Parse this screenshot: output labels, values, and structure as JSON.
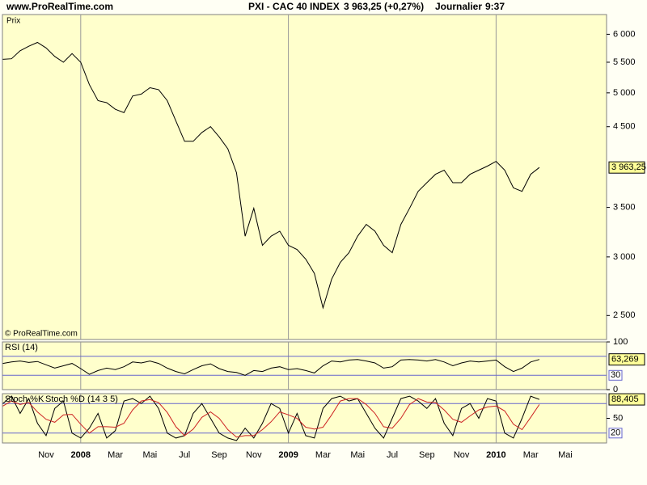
{
  "header": {
    "site": "www.ProRealTime.com",
    "title": "PXI - CAC 40 INDEX",
    "quote": "3 963,25 (+0,27%)",
    "period": "Journalier",
    "time": "9:37"
  },
  "chart_data": [
    {
      "type": "line",
      "label": "Prix",
      "credit": "© ProRealTime.com",
      "log": true,
      "categories": [
        null,
        null,
        null,
        null,
        null,
        "Nov",
        null,
        null,
        null,
        "2008",
        null,
        null,
        null,
        "Mar",
        null,
        null,
        null,
        "Mai",
        null,
        null,
        null,
        "Jul",
        null,
        null,
        null,
        "Sep",
        null,
        null,
        null,
        "Nov",
        null,
        null,
        null,
        "2009",
        null,
        null,
        null,
        "Mar",
        null,
        null,
        null,
        "Mai",
        null,
        null,
        null,
        "Jul",
        null,
        null,
        null,
        "Sep",
        null,
        null,
        null,
        "Nov",
        null,
        null,
        null,
        "2010",
        null,
        null,
        null,
        "Mar",
        null,
        null,
        null,
        "Mai",
        null,
        null,
        null,
        null
      ],
      "series": [
        {
          "name": "Prix",
          "color": "#000000",
          "values": [
            5550,
            5560,
            5700,
            5780,
            5850,
            5750,
            5600,
            5500,
            5650,
            5500,
            5130,
            4880,
            4850,
            4750,
            4700,
            4950,
            4980,
            5080,
            5050,
            4880,
            4580,
            4300,
            4300,
            4420,
            4500,
            4360,
            4200,
            3900,
            3200,
            3490,
            3110,
            3200,
            3250,
            3110,
            3070,
            2980,
            2850,
            2560,
            2800,
            2950,
            3040,
            3200,
            3320,
            3250,
            3110,
            3040,
            3320,
            3490,
            3680,
            3780,
            3880,
            3930,
            3780,
            3780,
            3880,
            3930,
            3980,
            4040,
            3930,
            3720,
            3680,
            3880,
            3963.25,
            null,
            null,
            null,
            null,
            null,
            null,
            null
          ]
        }
      ],
      "current": {
        "value": 3963.25,
        "label": "3 963,25"
      },
      "ylim": [
        2320,
        6380
      ],
      "yticks": [
        {
          "value": 2500,
          "label": "2 500"
        },
        {
          "value": 3000,
          "label": "3 000"
        },
        {
          "value": 3500,
          "label": "3 500"
        },
        {
          "value": 4500,
          "label": "4 500"
        },
        {
          "value": 5000,
          "label": "5 000"
        },
        {
          "value": 5500,
          "label": "5 500"
        },
        {
          "value": 6000,
          "label": "6 000"
        }
      ]
    },
    {
      "type": "line",
      "label": "RSI (14)",
      "series": [
        {
          "name": "RSI (14)",
          "color": "#000000",
          "values": [
            55,
            58,
            60,
            57,
            59,
            52,
            45,
            50,
            55,
            44,
            32,
            40,
            45,
            42,
            48,
            58,
            56,
            60,
            55,
            45,
            38,
            33,
            42,
            50,
            54,
            44,
            38,
            36,
            30,
            40,
            38,
            45,
            48,
            42,
            44,
            40,
            35,
            50,
            60,
            58,
            62,
            63,
            60,
            56,
            45,
            48,
            62,
            63,
            62,
            60,
            63,
            58,
            50,
            56,
            60,
            58,
            60,
            62,
            48,
            38,
            45,
            58,
            63.269
          ]
        }
      ],
      "current": {
        "value": 63.269,
        "label": "63,269"
      },
      "ylim": [
        0,
        100
      ],
      "yticks": [
        0,
        100
      ],
      "levels": [
        30,
        70
      ]
    },
    {
      "type": "line",
      "label": "Stoch %K",
      "series": [
        {
          "name": "Stoch %K",
          "color": "#000000",
          "values": [
            80,
            95,
            60,
            90,
            40,
            15,
            70,
            85,
            20,
            10,
            30,
            60,
            10,
            25,
            85,
            90,
            80,
            95,
            70,
            20,
            10,
            15,
            60,
            80,
            50,
            20,
            10,
            5,
            30,
            10,
            40,
            80,
            70,
            20,
            60,
            15,
            10,
            70,
            90,
            95,
            85,
            90,
            60,
            30,
            10,
            50,
            90,
            95,
            85,
            70,
            90,
            40,
            15,
            70,
            80,
            50,
            90,
            85,
            20,
            10,
            50,
            95,
            88.405
          ]
        },
        {
          "name": "Stoch %D (14 3 5)",
          "color": "#cc2222",
          "values": [
            75,
            85,
            78,
            82,
            63,
            48,
            42,
            57,
            58,
            38,
            20,
            33,
            33,
            32,
            40,
            67,
            85,
            88,
            82,
            62,
            33,
            15,
            28,
            52,
            63,
            50,
            27,
            12,
            15,
            15,
            27,
            43,
            63,
            57,
            50,
            32,
            28,
            32,
            57,
            85,
            90,
            90,
            78,
            60,
            33,
            30,
            50,
            78,
            90,
            83,
            82,
            67,
            48,
            42,
            55,
            67,
            73,
            75,
            65,
            38,
            27,
            52,
            78
          ]
        }
      ],
      "current": {
        "value": 88.405,
        "label": "88,405"
      },
      "ylim": [
        0,
        100
      ],
      "yticks": [
        50
      ],
      "levels": [
        20,
        80
      ]
    }
  ]
}
